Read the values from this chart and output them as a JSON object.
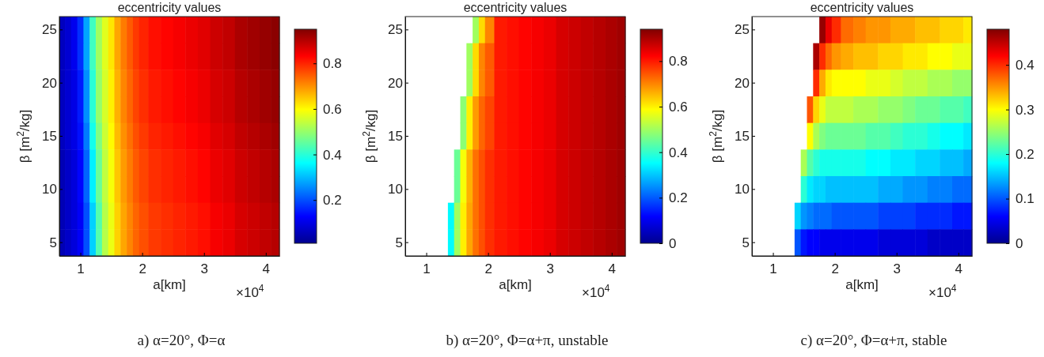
{
  "chart_data": [
    {
      "type": "heatmap",
      "title": "eccentricity values",
      "xlabel": "a[km]",
      "ylabel": "β [m$^{2}$/kg]",
      "annotations": [
        "×10$^{4}$",
        "a) α=20°, Φ=α"
      ],
      "x": [
        0.7,
        0.8,
        0.9,
        1.0,
        1.1,
        1.2,
        1.3,
        1.4,
        1.5,
        1.6,
        1.7,
        1.8,
        1.9,
        2.0,
        2.2,
        2.4,
        2.6,
        2.8,
        3.0,
        3.2,
        3.4,
        3.6,
        3.8,
        4.0,
        4.16
      ],
      "y_categories": [
        "25",
        null,
        "20",
        null,
        "15",
        null,
        "10",
        null,
        "5"
      ],
      "cells": [
        [
          0.06,
          0.08,
          0.11,
          0.17,
          0.28,
          0.42,
          0.51,
          0.57,
          0.62,
          0.68,
          0.72,
          0.75,
          0.78,
          0.8,
          0.82,
          0.83,
          0.84,
          0.85,
          0.86,
          0.88,
          0.89,
          0.91,
          0.92,
          0.93,
          0.94
        ],
        [
          0.06,
          0.08,
          0.11,
          0.17,
          0.28,
          0.42,
          0.51,
          0.57,
          0.62,
          0.68,
          0.72,
          0.75,
          0.78,
          0.8,
          0.82,
          0.83,
          0.84,
          0.85,
          0.86,
          0.88,
          0.89,
          0.91,
          0.92,
          0.93,
          0.94
        ],
        [
          0.06,
          0.08,
          0.1,
          0.15,
          0.26,
          0.4,
          0.5,
          0.56,
          0.61,
          0.67,
          0.71,
          0.74,
          0.77,
          0.79,
          0.81,
          0.82,
          0.83,
          0.84,
          0.85,
          0.87,
          0.88,
          0.9,
          0.91,
          0.92,
          0.93
        ],
        [
          0.06,
          0.08,
          0.1,
          0.15,
          0.26,
          0.4,
          0.5,
          0.56,
          0.61,
          0.67,
          0.71,
          0.74,
          0.77,
          0.79,
          0.81,
          0.82,
          0.83,
          0.84,
          0.85,
          0.87,
          0.88,
          0.9,
          0.91,
          0.92,
          0.93
        ],
        [
          0.06,
          0.08,
          0.1,
          0.14,
          0.24,
          0.38,
          0.48,
          0.55,
          0.6,
          0.66,
          0.7,
          0.73,
          0.76,
          0.78,
          0.8,
          0.81,
          0.82,
          0.83,
          0.84,
          0.86,
          0.87,
          0.89,
          0.9,
          0.91,
          0.92
        ],
        [
          0.05,
          0.07,
          0.09,
          0.13,
          0.22,
          0.35,
          0.46,
          0.54,
          0.59,
          0.65,
          0.69,
          0.72,
          0.75,
          0.77,
          0.79,
          0.8,
          0.81,
          0.82,
          0.83,
          0.85,
          0.86,
          0.88,
          0.89,
          0.9,
          0.91
        ],
        [
          0.05,
          0.07,
          0.09,
          0.13,
          0.22,
          0.35,
          0.46,
          0.54,
          0.59,
          0.65,
          0.69,
          0.72,
          0.75,
          0.77,
          0.79,
          0.8,
          0.81,
          0.82,
          0.83,
          0.85,
          0.86,
          0.88,
          0.89,
          0.9,
          0.91
        ],
        [
          0.05,
          0.07,
          0.09,
          0.12,
          0.2,
          0.32,
          0.44,
          0.53,
          0.58,
          0.64,
          0.68,
          0.71,
          0.74,
          0.76,
          0.78,
          0.79,
          0.8,
          0.81,
          0.82,
          0.84,
          0.85,
          0.87,
          0.88,
          0.89,
          0.9
        ],
        [
          0.05,
          0.07,
          0.09,
          0.12,
          0.2,
          0.32,
          0.44,
          0.53,
          0.58,
          0.64,
          0.68,
          0.71,
          0.74,
          0.76,
          0.78,
          0.79,
          0.8,
          0.81,
          0.82,
          0.84,
          0.85,
          0.87,
          0.88,
          0.89,
          0.9
        ]
      ],
      "xlim": [
        0.66,
        4.22
      ],
      "xticks": [
        1,
        2,
        3,
        4
      ],
      "clim": [
        0.01,
        0.95
      ],
      "cticks": [
        0.2,
        0.4,
        0.6,
        0.8
      ]
    },
    {
      "type": "heatmap",
      "title": "eccentricity values",
      "xlabel": "a[km]",
      "ylabel": "β [m$^{2}$/kg]",
      "annotations": [
        "×10$^{4}$",
        "b) α=20°, Φ=α+π, unstable"
      ],
      "x": [
        0.7,
        0.8,
        0.9,
        1.0,
        1.1,
        1.2,
        1.3,
        1.4,
        1.5,
        1.6,
        1.7,
        1.8,
        1.9,
        2.0,
        2.2,
        2.4,
        2.6,
        2.8,
        3.0,
        3.2,
        3.4,
        3.6,
        3.8,
        4.0,
        4.16
      ],
      "y_categories": [
        "25",
        null,
        "20",
        null,
        "15",
        null,
        "10",
        null,
        "5"
      ],
      "cells": [
        [
          null,
          null,
          null,
          null,
          null,
          null,
          null,
          null,
          null,
          null,
          null,
          0.5,
          0.62,
          0.7,
          0.8,
          0.81,
          0.82,
          0.83,
          0.84,
          0.86,
          0.87,
          0.88,
          0.89,
          0.9,
          0.91
        ],
        [
          null,
          null,
          null,
          null,
          null,
          null,
          null,
          null,
          null,
          null,
          0.5,
          0.62,
          0.7,
          0.74,
          0.8,
          0.81,
          0.82,
          0.83,
          0.84,
          0.86,
          0.87,
          0.88,
          0.89,
          0.9,
          0.91
        ],
        [
          null,
          null,
          null,
          null,
          null,
          null,
          null,
          null,
          null,
          null,
          0.5,
          0.62,
          0.7,
          0.74,
          0.8,
          0.81,
          0.82,
          0.83,
          0.84,
          0.86,
          0.87,
          0.88,
          0.89,
          0.9,
          0.91
        ],
        [
          null,
          null,
          null,
          null,
          null,
          null,
          null,
          null,
          null,
          0.48,
          0.6,
          0.68,
          0.73,
          0.76,
          0.8,
          0.81,
          0.82,
          0.83,
          0.84,
          0.86,
          0.87,
          0.88,
          0.89,
          0.9,
          0.91
        ],
        [
          null,
          null,
          null,
          null,
          null,
          null,
          null,
          null,
          null,
          0.48,
          0.6,
          0.68,
          0.73,
          0.76,
          0.8,
          0.81,
          0.82,
          0.83,
          0.84,
          0.86,
          0.87,
          0.88,
          0.89,
          0.9,
          0.91
        ],
        [
          null,
          null,
          null,
          null,
          null,
          null,
          null,
          null,
          0.45,
          0.58,
          0.66,
          0.72,
          0.75,
          0.78,
          0.8,
          0.81,
          0.82,
          0.83,
          0.84,
          0.86,
          0.87,
          0.88,
          0.89,
          0.9,
          0.91
        ],
        [
          null,
          null,
          null,
          null,
          null,
          null,
          null,
          null,
          0.45,
          0.58,
          0.66,
          0.72,
          0.75,
          0.78,
          0.8,
          0.81,
          0.82,
          0.83,
          0.84,
          0.86,
          0.87,
          0.88,
          0.89,
          0.9,
          0.91
        ],
        [
          null,
          null,
          null,
          null,
          null,
          null,
          null,
          0.35,
          0.5,
          0.6,
          0.67,
          0.72,
          0.75,
          0.78,
          0.8,
          0.81,
          0.82,
          0.83,
          0.84,
          0.86,
          0.87,
          0.88,
          0.89,
          0.9,
          0.91
        ],
        [
          null,
          null,
          null,
          null,
          null,
          null,
          null,
          0.35,
          0.5,
          0.6,
          0.67,
          0.72,
          0.75,
          0.78,
          0.8,
          0.81,
          0.82,
          0.83,
          0.84,
          0.86,
          0.87,
          0.88,
          0.89,
          0.9,
          0.91
        ]
      ],
      "xlim": [
        0.66,
        4.22
      ],
      "xticks": [
        1,
        2,
        3,
        4
      ],
      "clim": [
        0,
        0.94
      ],
      "cticks": [
        0,
        0.2,
        0.4,
        0.6,
        0.8
      ]
    },
    {
      "type": "heatmap",
      "title": "eccentricity values",
      "xlabel": "a[km]",
      "ylabel": "β [m$^{2}$/kg]",
      "annotations": [
        "×10$^{4}$",
        "c) α=20°, Φ=α+π, stable"
      ],
      "x": [
        0.7,
        0.8,
        0.9,
        1.0,
        1.1,
        1.2,
        1.3,
        1.4,
        1.5,
        1.6,
        1.7,
        1.8,
        1.9,
        2.0,
        2.2,
        2.4,
        2.6,
        2.8,
        3.0,
        3.2,
        3.4,
        3.6,
        3.8,
        4.0,
        4.16
      ],
      "y_categories": [
        "25",
        null,
        "20",
        null,
        "15",
        null,
        "10",
        null,
        "5"
      ],
      "cells": [
        [
          null,
          null,
          null,
          null,
          null,
          null,
          null,
          null,
          null,
          null,
          null,
          0.47,
          0.43,
          0.4,
          0.37,
          0.36,
          0.35,
          0.35,
          0.34,
          0.34,
          0.33,
          0.33,
          0.32,
          0.32,
          0.31
        ],
        [
          null,
          null,
          null,
          null,
          null,
          null,
          null,
          null,
          null,
          null,
          0.46,
          0.4,
          0.37,
          0.35,
          0.34,
          0.33,
          0.33,
          0.32,
          0.32,
          0.31,
          0.31,
          0.3,
          0.3,
          0.29,
          0.29
        ],
        [
          null,
          null,
          null,
          null,
          null,
          null,
          null,
          null,
          null,
          null,
          0.4,
          0.34,
          0.31,
          0.3,
          0.3,
          0.3,
          0.29,
          0.29,
          0.28,
          0.27,
          0.27,
          0.26,
          0.26,
          0.25,
          0.25
        ],
        [
          null,
          null,
          null,
          null,
          null,
          null,
          null,
          null,
          null,
          0.38,
          0.32,
          0.29,
          0.27,
          0.27,
          0.27,
          0.26,
          0.26,
          0.25,
          0.25,
          0.24,
          0.23,
          0.23,
          0.22,
          0.22,
          0.21
        ],
        [
          null,
          null,
          null,
          null,
          null,
          null,
          null,
          null,
          null,
          0.3,
          0.26,
          0.24,
          0.23,
          0.23,
          0.23,
          0.23,
          0.22,
          0.22,
          0.21,
          0.2,
          0.2,
          0.19,
          0.18,
          0.18,
          0.17
        ],
        [
          null,
          null,
          null,
          null,
          null,
          null,
          null,
          null,
          0.26,
          0.22,
          0.2,
          0.19,
          0.19,
          0.19,
          0.19,
          0.19,
          0.18,
          0.18,
          0.17,
          0.17,
          0.16,
          0.16,
          0.15,
          0.15,
          0.14
        ],
        [
          null,
          null,
          null,
          null,
          null,
          null,
          null,
          null,
          0.2,
          0.17,
          0.16,
          0.16,
          0.15,
          0.15,
          0.15,
          0.15,
          0.15,
          0.14,
          0.14,
          0.13,
          0.13,
          0.12,
          0.12,
          0.11,
          0.11
        ],
        [
          null,
          null,
          null,
          null,
          null,
          null,
          null,
          0.16,
          0.13,
          0.12,
          0.11,
          0.11,
          0.11,
          0.1,
          0.1,
          0.1,
          0.1,
          0.09,
          0.09,
          0.09,
          0.08,
          0.08,
          0.08,
          0.07,
          0.07
        ],
        [
          null,
          null,
          null,
          null,
          null,
          null,
          null,
          0.1,
          0.07,
          0.06,
          0.06,
          0.05,
          0.05,
          0.05,
          0.05,
          0.05,
          0.05,
          0.04,
          0.04,
          0.04,
          0.04,
          0.03,
          0.03,
          0.03,
          0.03
        ]
      ],
      "xlim": [
        0.66,
        4.22
      ],
      "xticks": [
        1,
        2,
        3,
        4
      ],
      "clim": [
        0,
        0.48
      ],
      "cticks": [
        0,
        0.1,
        0.2,
        0.3,
        0.4
      ]
    }
  ]
}
